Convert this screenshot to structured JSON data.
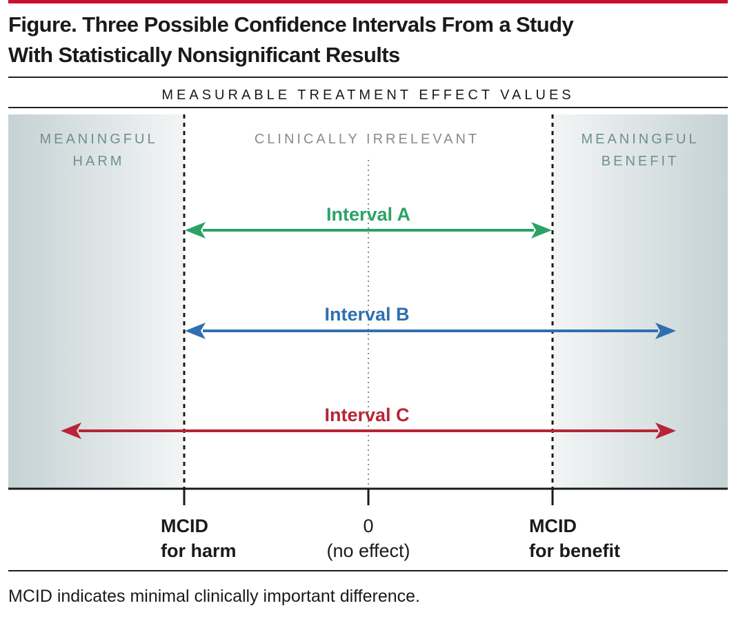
{
  "figure": {
    "title_line1": "Figure. Three Possible Confidence Intervals From a Study",
    "title_line2": "With Statistically Nonsignificant Results",
    "subheading": "MEASURABLE TREATMENT EFFECT VALUES",
    "footnote": "MCID indicates minimal clinically important difference."
  },
  "colors": {
    "accent_bar": "#c8102e",
    "region_label": "#6f8e95",
    "irrelevant_label": "#8a8a8a",
    "interval_a": "#2aa366",
    "interval_b": "#2f6fb0",
    "interval_c": "#b72435"
  },
  "regions": {
    "harm_line1": "MEANINGFUL",
    "harm_line2": "HARM",
    "irrelevant": "CLINICALLY IRRELEVANT",
    "benefit_line1": "MEANINGFUL",
    "benefit_line2": "BENEFIT"
  },
  "axis": {
    "ticks": [
      {
        "line1": "MCID",
        "line2": "for harm"
      },
      {
        "line1": "0",
        "line2": "(no effect)"
      },
      {
        "line1": "MCID",
        "line2": "for benefit"
      }
    ]
  },
  "intervals": [
    {
      "label": "Interval A",
      "color": "#2aa366",
      "left_end": "at-mcid-harm",
      "right_end": "at-mcid-benefit"
    },
    {
      "label": "Interval B",
      "color": "#2f6fb0",
      "left_end": "at-mcid-harm",
      "right_end": "into-benefit"
    },
    {
      "label": "Interval C",
      "color": "#b72435",
      "left_end": "into-harm",
      "right_end": "into-benefit"
    }
  ]
}
